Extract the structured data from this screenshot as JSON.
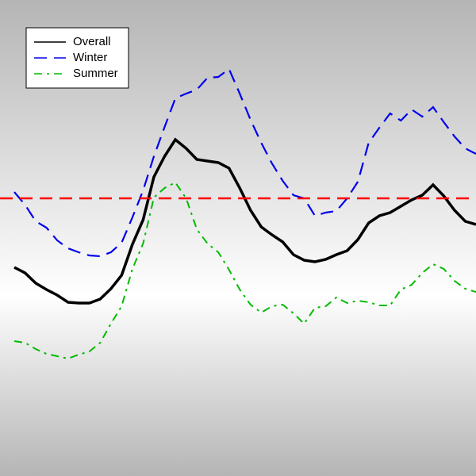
{
  "chart_data": {
    "type": "line",
    "ylim": [
      0,
      600
    ],
    "reference_line": {
      "value": 350,
      "color": "#ff0000",
      "style": "dashed"
    },
    "legend": "upper left",
    "series": [
      {
        "name": "Overall",
        "color": "#000000",
        "style": "solid",
        "values": [
          263,
          256,
          243,
          235,
          228,
          219,
          218,
          218,
          223,
          236,
          253,
          292,
          323,
          377,
          403,
          424,
          413,
          399,
          397,
          395,
          388,
          363,
          335,
          314,
          304,
          295,
          279,
          272,
          270,
          273,
          279,
          284,
          298,
          319,
          328,
          332,
          340,
          348,
          354,
          367,
          353,
          335,
          321,
          317
        ]
      },
      {
        "name": "Winter",
        "color": "#0000ee",
        "style": "dashed",
        "values": [
          358,
          342,
          321,
          313,
          297,
          287,
          282,
          278,
          277,
          282,
          294,
          326,
          360,
          403,
          440,
          476,
          482,
          487,
          502,
          503,
          513,
          482,
          449,
          420,
          394,
          372,
          354,
          350,
          328,
          332,
          334,
          350,
          371,
          420,
          439,
          457,
          448,
          462,
          453,
          465,
          446,
          428,
          413,
          406
        ]
      },
      {
        "name": "Summer",
        "color": "#00bb00",
        "style": "dashdot",
        "values": [
          170,
          168,
          160,
          154,
          151,
          148,
          153,
          157,
          168,
          192,
          214,
          261,
          293,
          351,
          363,
          370,
          350,
          311,
          293,
          282,
          260,
          235,
          216,
          206,
          214,
          216,
          205,
          192,
          212,
          214,
          225,
          218,
          221,
          219,
          215,
          215,
          235,
          241,
          256,
          267,
          261,
          246,
          236,
          232
        ]
      }
    ]
  }
}
